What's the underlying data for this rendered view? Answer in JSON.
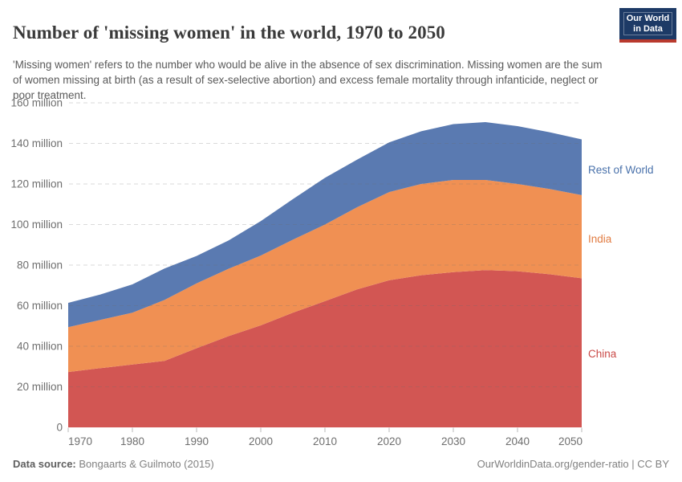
{
  "header": {
    "title": "Number of 'missing women' in the world, 1970 to 2050",
    "subtitle": "'Missing women' refers to the number who would be alive in the absence of sex discrimination. Missing women are the sum of women missing at birth (as a result of sex-selective abortion) and excess female mortality through infanticide, neglect or poor treatment."
  },
  "logo": {
    "line1": "Our World",
    "line2": "in Data",
    "bg_color": "#1d3a66",
    "stripe_color": "#b93a2e"
  },
  "chart_data": {
    "type": "area",
    "stacked": true,
    "title": "Number of 'missing women' in the world, 1970 to 2050",
    "x": [
      1970,
      1975,
      1980,
      1985,
      1990,
      1995,
      2000,
      2005,
      2010,
      2015,
      2020,
      2025,
      2030,
      2035,
      2040,
      2045,
      2050
    ],
    "series": [
      {
        "name": "China",
        "color": "#d25653",
        "label_color": "#ca4a47",
        "values": [
          27.3,
          29.2,
          31.0,
          32.8,
          39.0,
          45.0,
          50.3,
          56.5,
          62.2,
          68.0,
          72.5,
          75.0,
          76.5,
          77.5,
          77.0,
          75.5,
          73.5
        ]
      },
      {
        "name": "India",
        "color": "#f09053",
        "label_color": "#e17b41",
        "values": [
          22.1,
          23.8,
          25.5,
          30.0,
          32.0,
          33.2,
          34.4,
          36.0,
          37.8,
          40.5,
          43.5,
          45.0,
          45.5,
          44.5,
          43.0,
          42.0,
          41.0
        ]
      },
      {
        "name": "Rest of World",
        "color": "#5a7ab1",
        "label_color": "#4a72ab",
        "values": [
          12.0,
          12.5,
          14.0,
          15.5,
          13.5,
          14.0,
          17.0,
          20.0,
          23.0,
          23.5,
          24.5,
          26.0,
          27.5,
          28.5,
          28.5,
          28.0,
          27.5
        ]
      }
    ],
    "xlabel": "",
    "ylabel": "",
    "ylim": [
      0,
      160
    ],
    "ytick_step": 20,
    "ytick_suffix": " million",
    "ytick_zero_label": "0",
    "xticks": [
      1970,
      1980,
      1990,
      2000,
      2010,
      2020,
      2030,
      2040,
      2050
    ],
    "grid": "dashed",
    "legend_position": "right"
  },
  "footer": {
    "source_label": "Data source:",
    "source_value": "Bongaarts & Guilmoto (2015)",
    "link": "OurWorldinData.org/gender-ratio",
    "separator": " | ",
    "license": "CC BY"
  }
}
